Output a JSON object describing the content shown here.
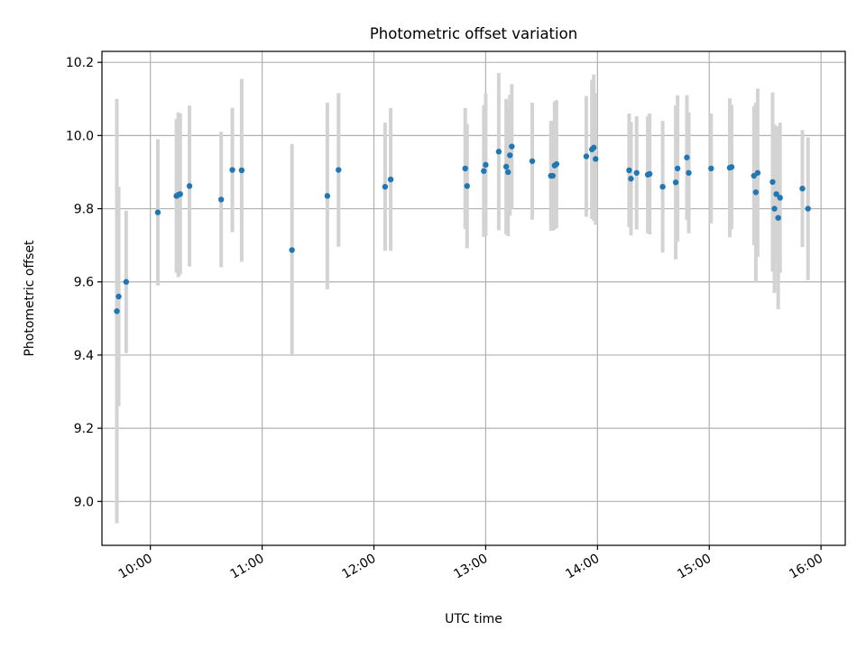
{
  "chart_data": {
    "type": "scatter",
    "title": "Photometric offset variation",
    "xlabel": "UTC time",
    "ylabel": "Photometric offset",
    "xlim": [
      "09:34",
      "16:13"
    ],
    "ylim": [
      8.88,
      10.23
    ],
    "x_ticks": [
      "10:00",
      "11:00",
      "12:00",
      "13:00",
      "14:00",
      "15:00",
      "16:00"
    ],
    "y_ticks": [
      "9.0",
      "9.2",
      "9.4",
      "9.6",
      "9.8",
      "10.0",
      "10.2"
    ],
    "grid": true,
    "colors": {
      "points": "#1f77b4",
      "error_bars": "#d3d3d3",
      "grid": "#b0b0b0"
    },
    "points": [
      {
        "t": "09:42",
        "y": 9.52,
        "err": 0.58
      },
      {
        "t": "09:43",
        "y": 9.56,
        "err": 0.3
      },
      {
        "t": "09:47",
        "y": 9.6,
        "err": 0.195
      },
      {
        "t": "10:04",
        "y": 9.79,
        "err": 0.2
      },
      {
        "t": "10:14",
        "y": 9.835,
        "err": 0.21
      },
      {
        "t": "10:15",
        "y": 9.838,
        "err": 0.225
      },
      {
        "t": "10:16",
        "y": 9.84,
        "err": 0.22
      },
      {
        "t": "10:21",
        "y": 9.862,
        "err": 0.22
      },
      {
        "t": "10:38",
        "y": 9.825,
        "err": 0.185
      },
      {
        "t": "10:44",
        "y": 9.906,
        "err": 0.17
      },
      {
        "t": "10:49",
        "y": 9.905,
        "err": 0.25
      },
      {
        "t": "11:16",
        "y": 9.687,
        "err": 0.29
      },
      {
        "t": "11:35",
        "y": 9.835,
        "err": 0.255
      },
      {
        "t": "11:41",
        "y": 9.906,
        "err": 0.21
      },
      {
        "t": "12:06",
        "y": 9.86,
        "err": 0.175
      },
      {
        "t": "12:09",
        "y": 9.88,
        "err": 0.195
      },
      {
        "t": "12:49",
        "y": 9.91,
        "err": 0.165
      },
      {
        "t": "12:50",
        "y": 9.862,
        "err": 0.17
      },
      {
        "t": "12:59",
        "y": 9.903,
        "err": 0.18
      },
      {
        "t": "13:00",
        "y": 9.92,
        "err": 0.195
      },
      {
        "t": "13:07",
        "y": 9.956,
        "err": 0.215
      },
      {
        "t": "13:11",
        "y": 9.915,
        "err": 0.185
      },
      {
        "t": "13:12",
        "y": 9.9,
        "err": 0.175
      },
      {
        "t": "13:13",
        "y": 9.946,
        "err": 0.165
      },
      {
        "t": "13:14",
        "y": 9.97,
        "err": 0.17
      },
      {
        "t": "13:25",
        "y": 9.93,
        "err": 0.16
      },
      {
        "t": "13:35",
        "y": 9.89,
        "err": 0.15
      },
      {
        "t": "13:36",
        "y": 9.89,
        "err": 0.15
      },
      {
        "t": "13:37",
        "y": 9.918,
        "err": 0.175
      },
      {
        "t": "13:38",
        "y": 9.922,
        "err": 0.175
      },
      {
        "t": "13:54",
        "y": 9.943,
        "err": 0.165
      },
      {
        "t": "13:57",
        "y": 9.962,
        "err": 0.19
      },
      {
        "t": "13:58",
        "y": 9.967,
        "err": 0.2
      },
      {
        "t": "13:59",
        "y": 9.936,
        "err": 0.18
      },
      {
        "t": "14:17",
        "y": 9.905,
        "err": 0.155
      },
      {
        "t": "14:18",
        "y": 9.882,
        "err": 0.155
      },
      {
        "t": "14:21",
        "y": 9.898,
        "err": 0.155
      },
      {
        "t": "14:27",
        "y": 9.893,
        "err": 0.16
      },
      {
        "t": "14:28",
        "y": 9.895,
        "err": 0.165
      },
      {
        "t": "14:35",
        "y": 9.86,
        "err": 0.18
      },
      {
        "t": "14:42",
        "y": 9.872,
        "err": 0.21
      },
      {
        "t": "14:43",
        "y": 9.91,
        "err": 0.2
      },
      {
        "t": "14:48",
        "y": 9.94,
        "err": 0.17
      },
      {
        "t": "14:49",
        "y": 9.898,
        "err": 0.165
      },
      {
        "t": "15:01",
        "y": 9.91,
        "err": 0.15
      },
      {
        "t": "15:11",
        "y": 9.912,
        "err": 0.19
      },
      {
        "t": "15:12",
        "y": 9.914,
        "err": 0.17
      },
      {
        "t": "15:24",
        "y": 9.89,
        "err": 0.19
      },
      {
        "t": "15:25",
        "y": 9.845,
        "err": 0.245
      },
      {
        "t": "15:26",
        "y": 9.898,
        "err": 0.23
      },
      {
        "t": "15:34",
        "y": 9.873,
        "err": 0.245
      },
      {
        "t": "15:35",
        "y": 9.8,
        "err": 0.23
      },
      {
        "t": "15:36",
        "y": 9.84,
        "err": 0.185
      },
      {
        "t": "15:37",
        "y": 9.775,
        "err": 0.25
      },
      {
        "t": "15:38",
        "y": 9.83,
        "err": 0.205
      },
      {
        "t": "15:50",
        "y": 9.855,
        "err": 0.16
      },
      {
        "t": "15:53",
        "y": 9.8,
        "err": 0.195
      }
    ]
  }
}
